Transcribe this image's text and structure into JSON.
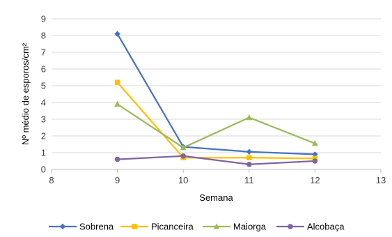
{
  "chart_data": {
    "type": "scatter",
    "title": "",
    "xlabel": "Semana",
    "ylabel": "Nº médio de esporos/cm²",
    "xlim": [
      8,
      13
    ],
    "ylim": [
      0,
      9
    ],
    "xticks": [
      8,
      9,
      10,
      11,
      12,
      13
    ],
    "yticks": [
      0,
      1,
      2,
      3,
      4,
      5,
      6,
      7,
      8,
      9
    ],
    "grid": "horizontal",
    "legend_position": "bottom",
    "series": [
      {
        "name": "Sobrena",
        "color": "#4472C4",
        "marker": "diamond",
        "x": [
          9,
          10,
          11,
          12
        ],
        "y": [
          8.1,
          1.35,
          1.05,
          0.9
        ]
      },
      {
        "name": "Picanceira",
        "color": "#FFC000",
        "marker": "square",
        "x": [
          9,
          10,
          11,
          12
        ],
        "y": [
          5.2,
          0.7,
          0.7,
          0.65
        ]
      },
      {
        "name": "Maiorga",
        "color": "#9BBB59",
        "marker": "triangle",
        "x": [
          9,
          10,
          11,
          12
        ],
        "y": [
          3.9,
          1.3,
          3.1,
          1.55
        ]
      },
      {
        "name": "Alcobaça",
        "color": "#8064A2",
        "marker": "circle",
        "x": [
          9,
          10,
          11,
          12
        ],
        "y": [
          0.6,
          0.8,
          0.3,
          0.5
        ]
      }
    ]
  }
}
